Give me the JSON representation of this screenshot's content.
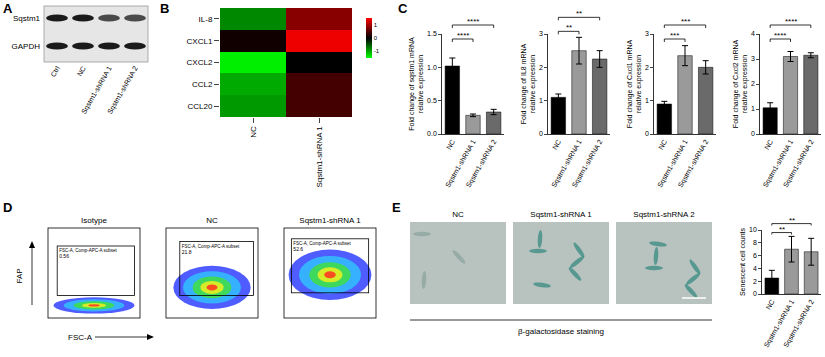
{
  "panel_labels": [
    "A",
    "B",
    "C",
    "D",
    "E"
  ],
  "blot": {
    "rows": [
      "Sqstm1",
      "GAPDH"
    ],
    "lanes": [
      "Ctrl",
      "NC",
      "Sqstm1-shRNA 1",
      "Sqstm1-shRNA 2"
    ]
  },
  "flow": {
    "y_label": "FAP",
    "x_label": "FSC-A",
    "gate_title": "FSC-A, Comp-APC-A subset",
    "panels": [
      {
        "title": "Isotype",
        "gate_value": 0.56
      },
      {
        "title": "NC",
        "gate_value": 21.8
      },
      {
        "title": "Sqstm1-shRNA 1",
        "gate_value": 52.6
      }
    ]
  },
  "staining": {
    "images": [
      "NC",
      "Sqstm1-shRNA 1",
      "Sqstm1-shRNA 2"
    ],
    "caption": "β-galactosidase staining"
  },
  "chart_data": [
    {
      "type": "heatmap",
      "x": [
        "NC",
        "Sqstm1-shRNA 1"
      ],
      "y": [
        "IL-8",
        "CXCL1",
        "CXCL2",
        "CCL2",
        "CCL20"
      ],
      "cells": [
        [
          -0.8,
          0.8
        ],
        [
          0.1,
          1.4
        ],
        [
          -1.4,
          0.0
        ],
        [
          -1.0,
          0.4
        ],
        [
          -0.9,
          0.4
        ]
      ],
      "zlim": [
        -1.5,
        1.5
      ],
      "zticks": [
        -1,
        0,
        1
      ]
    },
    {
      "type": "bar",
      "y_label": [
        "Fold change of sqstm1 mRNA",
        "relative expression"
      ],
      "categories": [
        "NC",
        "Sqstm1-shRNA 1",
        "Sqstm1-shRNA 2"
      ],
      "values": [
        1.02,
        0.28,
        0.33
      ],
      "errors": [
        0.12,
        0.02,
        0.04
      ],
      "colors": [
        "#000000",
        "#9a9a9a",
        "#6a6a6a"
      ],
      "ylim": [
        0,
        1.5
      ],
      "yticks": [
        {
          "value": 0,
          "label": "0.0"
        },
        0.5,
        {
          "value": 1,
          "label": "1.0"
        },
        1.5
      ],
      "significance": [
        {
          "from": "NC",
          "to": "Sqstm1-shRNA 1",
          "label": "****"
        },
        {
          "from": "NC",
          "to": "Sqstm1-shRNA 2",
          "label": "****"
        }
      ]
    },
    {
      "type": "bar",
      "y_label": [
        "Fold change of IL8 mRNA",
        "relative expression"
      ],
      "categories": [
        "NC",
        "Sqstm1-shRNA 1",
        "Sqstm1-shRNA 2"
      ],
      "values": [
        1.1,
        2.5,
        2.25
      ],
      "errors": [
        0.1,
        0.4,
        0.25
      ],
      "colors": [
        "#000000",
        "#9a9a9a",
        "#6a6a6a"
      ],
      "ylim": [
        0,
        3
      ],
      "yticks": [
        0,
        1,
        2,
        3
      ],
      "significance": [
        {
          "from": "NC",
          "to": "Sqstm1-shRNA 1",
          "label": "**"
        },
        {
          "from": "NC",
          "to": "Sqstm1-shRNA 2",
          "label": "**"
        }
      ]
    },
    {
      "type": "bar",
      "y_label": [
        "Fold change of Cxcl1 mRNA",
        "relative expression"
      ],
      "categories": [
        "NC",
        "Sqstm1-shRNA 1",
        "Sqstm1-shRNA 2"
      ],
      "values": [
        0.9,
        2.35,
        2.0
      ],
      "errors": [
        0.08,
        0.3,
        0.2
      ],
      "colors": [
        "#000000",
        "#9a9a9a",
        "#6a6a6a"
      ],
      "ylim": [
        0,
        3
      ],
      "yticks": [
        0,
        1,
        2,
        3
      ],
      "significance": [
        {
          "from": "NC",
          "to": "Sqstm1-shRNA 1",
          "label": "***"
        },
        {
          "from": "NC",
          "to": "Sqstm1-shRNA 2",
          "label": "***"
        }
      ]
    },
    {
      "type": "bar",
      "y_label": [
        "Fold change of Cxcl2 mRNA",
        "relative expression"
      ],
      "categories": [
        "NC",
        "Sqstm1-shRNA 1",
        "Sqstm1-shRNA 2"
      ],
      "values": [
        1.05,
        3.1,
        3.15
      ],
      "errors": [
        0.2,
        0.2,
        0.1
      ],
      "colors": [
        "#000000",
        "#9a9a9a",
        "#6a6a6a"
      ],
      "ylim": [
        0,
        4
      ],
      "yticks": [
        0,
        1,
        2,
        3,
        4
      ],
      "significance": [
        {
          "from": "NC",
          "to": "Sqstm1-shRNA 1",
          "label": "****"
        },
        {
          "from": "NC",
          "to": "Sqstm1-shRNA 2",
          "label": "****"
        }
      ]
    },
    {
      "type": "bar",
      "y_label": [
        "Senescent cell counts"
      ],
      "categories": [
        "NC",
        "Sqstm1-shRNA 1",
        "Sqstm1-shRNA 2"
      ],
      "values": [
        2.5,
        7.0,
        6.6
      ],
      "errors": [
        1.2,
        2.0,
        2.1
      ],
      "colors": [
        "#000000",
        "#9a9a9a",
        "#9a9a9a"
      ],
      "ylim": [
        0,
        10
      ],
      "yticks": [
        0,
        2,
        4,
        6,
        8,
        10
      ],
      "significance": [
        {
          "from": "NC",
          "to": "Sqstm1-shRNA 1",
          "label": "**"
        },
        {
          "from": "NC",
          "to": "Sqstm1-shRNA 2",
          "label": "**"
        }
      ]
    }
  ]
}
